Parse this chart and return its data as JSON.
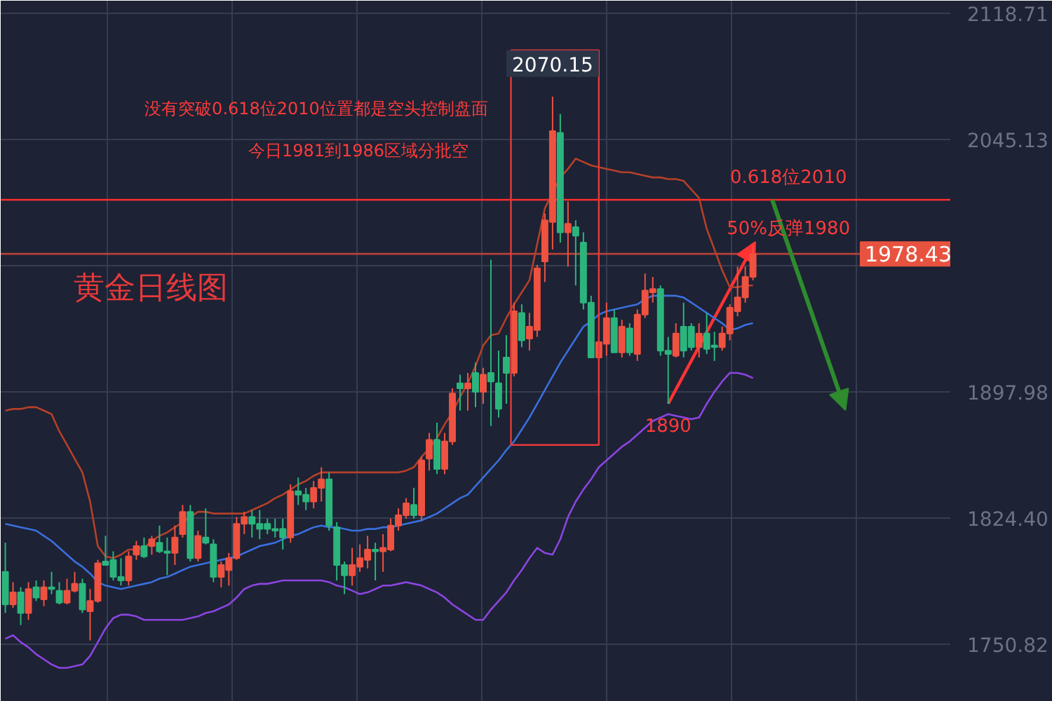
{
  "chart_data": {
    "type": "candlestick",
    "title": "黄金日线图",
    "categories": [
      null,
      null,
      null,
      null,
      null,
      null,
      null,
      null,
      null,
      null,
      null,
      null,
      null,
      null,
      null,
      null,
      null,
      null,
      null,
      null,
      null,
      null,
      null,
      null,
      null,
      null,
      null,
      null,
      null,
      null,
      null,
      null,
      null,
      null,
      null,
      null,
      null,
      null,
      null,
      null,
      null,
      null,
      null,
      null,
      null,
      null,
      null,
      null,
      null,
      null,
      null,
      null,
      null,
      null,
      null,
      null,
      null,
      null,
      null,
      null,
      null,
      null,
      null,
      null,
      null,
      null,
      null,
      null,
      null,
      null,
      null,
      null,
      null,
      null,
      null,
      null,
      null,
      null,
      null,
      null,
      null,
      null,
      null,
      null,
      null,
      null,
      null,
      null,
      null,
      null,
      null,
      null,
      null,
      null,
      null,
      null,
      null,
      null
    ],
    "ohlc": [
      [
        1793,
        1810,
        1769,
        1774
      ],
      [
        1774,
        1787,
        1772,
        1781
      ],
      [
        1781,
        1784,
        1762,
        1769
      ],
      [
        1769,
        1787,
        1765,
        1783
      ],
      [
        1784,
        1788,
        1776,
        1778
      ],
      [
        1777,
        1788,
        1773,
        1784
      ],
      [
        1784,
        1793,
        1780,
        1783
      ],
      [
        1782,
        1787,
        1774,
        1775
      ],
      [
        1775,
        1789,
        1774,
        1782
      ],
      [
        1782,
        1793,
        1781,
        1786
      ],
      [
        1786,
        1789,
        1769,
        1771
      ],
      [
        1770,
        1783,
        1753,
        1776
      ],
      [
        1776,
        1800,
        1775,
        1798
      ],
      [
        1799,
        1814,
        1797,
        1797
      ],
      [
        1800,
        1805,
        1788,
        1790
      ],
      [
        1790,
        1801,
        1785,
        1788
      ],
      [
        1788,
        1805,
        1785,
        1802
      ],
      [
        1803,
        1811,
        1800,
        1808
      ],
      [
        1808,
        1813,
        1801,
        1802
      ],
      [
        1808,
        1814,
        1803,
        1812
      ],
      [
        1810,
        1820,
        1804,
        1805
      ],
      [
        1805,
        1813,
        1791,
        1804
      ],
      [
        1804,
        1820,
        1797,
        1813
      ],
      [
        1815,
        1832,
        1813,
        1828
      ],
      [
        1828,
        1832,
        1799,
        1801
      ],
      [
        1801,
        1817,
        1799,
        1814
      ],
      [
        1813,
        1830,
        1809,
        1810
      ],
      [
        1809,
        1812,
        1787,
        1790
      ],
      [
        1790,
        1799,
        1784,
        1797
      ],
      [
        1794,
        1804,
        1785,
        1801
      ],
      [
        1801,
        1825,
        1800,
        1821
      ],
      [
        1821,
        1828,
        1815,
        1825
      ],
      [
        1825,
        1829,
        1813,
        1821
      ],
      [
        1821,
        1829,
        1812,
        1818
      ],
      [
        1821,
        1824,
        1815,
        1818
      ],
      [
        1818,
        1824,
        1813,
        1817
      ],
      [
        1818,
        1824,
        1806,
        1813
      ],
      [
        1813,
        1844,
        1810,
        1840
      ],
      [
        1840,
        1848,
        1832,
        1838
      ],
      [
        1838,
        1842,
        1829,
        1834
      ],
      [
        1834,
        1846,
        1830,
        1842
      ],
      [
        1842,
        1854,
        1834,
        1847
      ],
      [
        1847,
        1851,
        1817,
        1820
      ],
      [
        1819,
        1822,
        1788,
        1797
      ],
      [
        1797,
        1799,
        1780,
        1791
      ],
      [
        1791,
        1807,
        1785,
        1797
      ],
      [
        1796,
        1809,
        1793,
        1801
      ],
      [
        1800,
        1814,
        1795,
        1806
      ],
      [
        1806,
        1810,
        1788,
        1805
      ],
      [
        1805,
        1815,
        1793,
        1807
      ],
      [
        1806,
        1824,
        1805,
        1820
      ],
      [
        1820,
        1830,
        1817,
        1826
      ],
      [
        1826,
        1836,
        1824,
        1833
      ],
      [
        1832,
        1842,
        1824,
        1826
      ],
      [
        1826,
        1860,
        1823,
        1858
      ],
      [
        1859,
        1874,
        1852,
        1870
      ],
      [
        1870,
        1880,
        1850,
        1853
      ],
      [
        1853,
        1874,
        1850,
        1869
      ],
      [
        1869,
        1900,
        1867,
        1897
      ],
      [
        1903,
        1908,
        1887,
        1900
      ],
      [
        1900,
        1909,
        1887,
        1903
      ],
      [
        1909,
        1915,
        1889,
        1898
      ],
      [
        1898,
        1912,
        1891,
        1908
      ],
      [
        1909,
        1975,
        1878,
        1904
      ],
      [
        1903,
        1922,
        1883,
        1888
      ],
      [
        1918,
        1931,
        1891,
        1909
      ],
      [
        1909,
        1950,
        1907,
        1945
      ],
      [
        1944,
        1949,
        1924,
        1928
      ],
      [
        1929,
        1944,
        1922,
        1936
      ],
      [
        1934,
        1972,
        1930,
        1970
      ],
      [
        1974,
        2002,
        1962,
        1998
      ],
      [
        1997,
        2070.15,
        1981,
        2050
      ],
      [
        2049,
        2060,
        1985,
        1991
      ],
      [
        1991,
        2009,
        1971,
        1996
      ],
      [
        1994,
        1998,
        1960,
        1989
      ],
      [
        1985,
        1991,
        1946,
        1950
      ],
      [
        1950,
        1954,
        1918,
        1918
      ],
      [
        1918,
        1930,
        1896,
        1927
      ],
      [
        1926,
        1950,
        1919,
        1941
      ],
      [
        1941,
        1946,
        1921,
        1921
      ],
      [
        1921,
        1940,
        1918,
        1936
      ],
      [
        1935,
        1938,
        1919,
        1921
      ],
      [
        1920,
        1946,
        1916,
        1943
      ],
      [
        1943,
        1967,
        1941,
        1957
      ],
      [
        1956,
        1965,
        1950,
        1958
      ],
      [
        1958,
        1960,
        1919,
        1922
      ],
      [
        1922,
        1930,
        1891,
        1920
      ],
      [
        1919,
        1938,
        1918,
        1932
      ],
      [
        1936,
        1950,
        1918,
        1922
      ],
      [
        1936,
        1938,
        1922,
        1924
      ],
      [
        1924,
        1938,
        1918,
        1932
      ],
      [
        1932,
        1944,
        1920,
        1923
      ],
      [
        1925,
        1933,
        1916,
        1924
      ],
      [
        1924,
        1936,
        1922,
        1932
      ],
      [
        1932,
        1949,
        1928,
        1947
      ],
      [
        1945,
        1971,
        1942,
        1953
      ],
      [
        1953,
        1971,
        1950,
        1965
      ],
      [
        1965,
        1983,
        1963,
        1978.43
      ]
    ],
    "colors": [
      "#2bb57d",
      "#ef5240",
      "#2bb57d",
      "#ef5240",
      "#2bb57d",
      "#ef5240",
      "#2bb57d",
      "#2bb57d",
      "#ef5240",
      "#ef5240",
      "#2bb57d",
      "#ef5240",
      "#ef5240",
      "#2bb57d",
      "#2bb57d",
      "#2bb57d",
      "#ef5240",
      "#ef5240",
      "#2bb57d",
      "#ef5240",
      "#2bb57d",
      "#2bb57d",
      "#ef5240",
      "#ef5240",
      "#2bb57d",
      "#ef5240",
      "#2bb57d",
      "#2bb57d",
      "#ef5240",
      "#ef5240",
      "#ef5240",
      "#ef5240",
      "#2bb57d",
      "#2bb57d",
      "#2bb57d",
      "#2bb57d",
      "#2bb57d",
      "#ef5240",
      "#2bb57d",
      "#2bb57d",
      "#ef5240",
      "#ef5240",
      "#2bb57d",
      "#2bb57d",
      "#2bb57d",
      "#ef5240",
      "#ef5240",
      "#ef5240",
      "#2bb57d",
      "#ef5240",
      "#ef5240",
      "#ef5240",
      "#ef5240",
      "#2bb57d",
      "#ef5240",
      "#ef5240",
      "#2bb57d",
      "#ef5240",
      "#ef5240",
      "#2bb57d",
      "#ef5240",
      "#2bb57d",
      "#ef5240",
      "#2bb57d",
      "#2bb57d",
      "#2bb57d",
      "#ef5240",
      "#2bb57d",
      "#ef5240",
      "#ef5240",
      "#ef5240",
      "#ef5240",
      "#2bb57d",
      "#ef5240",
      "#2bb57d",
      "#2bb57d",
      "#2bb57d",
      "#ef5240",
      "#ef5240",
      "#2bb57d",
      "#ef5240",
      "#2bb57d",
      "#ef5240",
      "#ef5240",
      "#ef5240",
      "#2bb57d",
      "#2bb57d",
      "#ef5240",
      "#2bb57d",
      "#2bb57d",
      "#ef5240",
      "#2bb57d",
      "#2bb57d",
      "#ef5240",
      "#ef5240",
      "#ef5240",
      "#ef5240",
      "#ef5240"
    ],
    "series": [
      {
        "type": "line",
        "color": "#b5402a",
        "values": [
          1887,
          1888,
          1888,
          1889,
          1889,
          1887,
          1885,
          1875,
          1867,
          1859,
          1851,
          1834,
          1808,
          1802,
          1801,
          1803,
          1806,
          1806,
          1807,
          1811,
          1814,
          1816,
          1819,
          1822,
          1825,
          1828,
          1828,
          1827,
          1827,
          1827,
          1827,
          1827,
          1829,
          1831,
          1833,
          1836,
          1838,
          1841,
          1844,
          1846,
          1849,
          1851,
          1851,
          1851,
          1851,
          1851,
          1851,
          1851,
          1851,
          1851,
          1851,
          1851,
          1852,
          1854,
          1860,
          1865,
          1871,
          1879,
          1886,
          1895,
          1903,
          1913,
          1925,
          1931,
          1932,
          1941,
          1949,
          1956,
          1963,
          1984,
          2005,
          2014,
          2023,
          2028,
          2034,
          2032,
          2030,
          2029,
          2028,
          2027,
          2026,
          2026,
          2025,
          2024,
          2023,
          2023,
          2022,
          2022,
          2021,
          2016,
          2011,
          1993,
          1981,
          1969,
          1959,
          1959,
          1960,
          1960
        ]
      },
      {
        "type": "line",
        "color": "#3a6fdc",
        "values": [
          1821,
          1820,
          1819,
          1818,
          1817,
          1814,
          1811,
          1807,
          1803,
          1799,
          1796,
          1792,
          1787,
          1785,
          1784,
          1783,
          1784,
          1785,
          1786,
          1787,
          1789,
          1790,
          1792,
          1794,
          1796,
          1797,
          1798,
          1799,
          1800,
          1801,
          1802,
          1804,
          1806,
          1808,
          1809,
          1810,
          1812,
          1814,
          1815,
          1817,
          1819,
          1820,
          1819,
          1819,
          1818,
          1817,
          1817,
          1818,
          1818,
          1819,
          1819,
          1820,
          1821,
          1822,
          1823,
          1825,
          1827,
          1830,
          1833,
          1836,
          1838,
          1843,
          1848,
          1853,
          1858,
          1864,
          1869,
          1876,
          1883,
          1891,
          1899,
          1907,
          1915,
          1922,
          1929,
          1936,
          1939,
          1943,
          1945,
          1946,
          1947,
          1948,
          1949,
          1952,
          1954,
          1954,
          1954,
          1954,
          1953,
          1950,
          1947,
          1944,
          1941,
          1938,
          1934,
          1935,
          1937,
          1938
        ]
      },
      {
        "type": "line",
        "color": "#8b45e0",
        "values": [
          1754,
          1756,
          1752,
          1749,
          1745,
          1742,
          1739,
          1737,
          1737,
          1738,
          1739,
          1744,
          1752,
          1760,
          1766,
          1768,
          1768,
          1767,
          1765,
          1765,
          1765,
          1765,
          1765,
          1765,
          1766,
          1767,
          1769,
          1770,
          1772,
          1774,
          1778,
          1783,
          1785,
          1786,
          1786,
          1787,
          1788,
          1788,
          1788,
          1788,
          1788,
          1788,
          1787,
          1785,
          1784,
          1782,
          1780,
          1781,
          1783,
          1785,
          1785,
          1786,
          1787,
          1786,
          1785,
          1783,
          1781,
          1778,
          1774,
          1771,
          1768,
          1765,
          1765,
          1771,
          1776,
          1781,
          1788,
          1794,
          1801,
          1807,
          1804,
          1803,
          1812,
          1825,
          1834,
          1841,
          1847,
          1854,
          1858,
          1862,
          1866,
          1869,
          1873,
          1877,
          1881,
          1883,
          1885,
          1884,
          1883,
          1882,
          1883,
          1891,
          1898,
          1904,
          1909,
          1909,
          1908,
          1906
        ]
      }
    ],
    "ylim": [
      1717.27,
      2126.07
    ],
    "yticks": [
      2118.71,
      2045.13,
      {
        "value": 1971.56,
        "label": null
      },
      1897.98,
      {
        "value": 1824.4,
        "label": "1824.40"
      },
      1750.82
    ],
    "ref_lines": [
      {
        "axis": "y",
        "value": 2010,
        "label": "0.618位2010",
        "color": "#ff2e2e"
      },
      {
        "axis": "y",
        "value": 1978.43,
        "label": "1978.43",
        "color": "#b8413a"
      }
    ],
    "annotations": [
      "没有突破0.618位2010位置都是空头控制盘面",
      "今日1981到1986区域分批空",
      "2070.15",
      "50%反弹1980",
      "1890"
    ],
    "grid": true,
    "tick_labels": "y"
  }
}
